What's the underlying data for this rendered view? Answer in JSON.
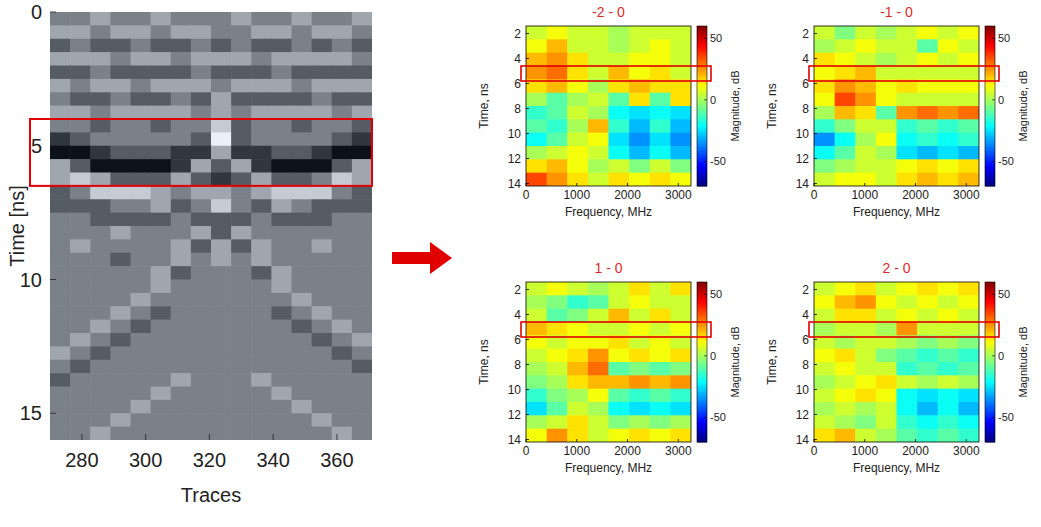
{
  "chart_data": [
    {
      "type": "heatmap",
      "x_label": "Traces",
      "y_label": "Time [ns]",
      "xlim": [
        270,
        371
      ],
      "ylim": [
        0,
        16
      ],
      "xticks": [
        280,
        300,
        320,
        340,
        360
      ],
      "yticks": [
        0,
        5,
        10,
        15
      ],
      "zlim": [
        -3,
        3
      ],
      "highlight": {
        "y": [
          4.0,
          6.5
        ],
        "color": "#e00000"
      },
      "z": [
        [
          0,
          0,
          1,
          0,
          0,
          1,
          0,
          0,
          0,
          1,
          0,
          0,
          1,
          0,
          0,
          1
        ],
        [
          1,
          1,
          0,
          1,
          1,
          0,
          1,
          1,
          0,
          0,
          1,
          1,
          0,
          1,
          1,
          0
        ],
        [
          -1,
          0,
          -1,
          -1,
          0,
          -1,
          -1,
          0,
          -1,
          0,
          -1,
          -1,
          0,
          -1,
          0,
          -1
        ],
        [
          1,
          1,
          1,
          0,
          1,
          1,
          0,
          1,
          1,
          1,
          0,
          1,
          1,
          1,
          1,
          0
        ],
        [
          -1,
          -1,
          0,
          -1,
          -1,
          -1,
          -1,
          0,
          -1,
          -1,
          -1,
          0,
          -1,
          -1,
          -1,
          -1
        ],
        [
          1,
          0,
          1,
          1,
          0,
          1,
          1,
          1,
          0,
          1,
          1,
          1,
          0,
          1,
          1,
          1
        ],
        [
          0,
          -1,
          -1,
          0,
          -1,
          -1,
          0,
          -1,
          1,
          -1,
          -1,
          -1,
          -1,
          0,
          -1,
          -1
        ],
        [
          1,
          1,
          0,
          1,
          1,
          1,
          1,
          0,
          1,
          0,
          1,
          1,
          1,
          1,
          0,
          1
        ],
        [
          0,
          0,
          -1,
          0,
          0,
          -1,
          0,
          0,
          2,
          -1,
          0,
          0,
          -1,
          0,
          0,
          -1
        ],
        [
          -2,
          -1,
          0,
          0,
          0,
          0,
          0,
          -1,
          3,
          -1,
          0,
          0,
          0,
          0,
          -1,
          -2
        ],
        [
          -3,
          -3,
          -2,
          -1,
          -1,
          -1,
          -2,
          -2,
          1,
          -2,
          -2,
          -1,
          -1,
          -2,
          -3,
          -3
        ],
        [
          1,
          -1,
          -3,
          -3,
          -3,
          -3,
          -2,
          1,
          -1,
          1,
          -2,
          -3,
          -3,
          -3,
          -1,
          1
        ],
        [
          1,
          2,
          1,
          -1,
          -1,
          -1,
          1,
          -1,
          -2,
          -1,
          1,
          -1,
          -1,
          0,
          2,
          1
        ],
        [
          -1,
          0,
          2,
          2,
          2,
          1,
          0,
          1,
          1,
          0,
          1,
          2,
          2,
          2,
          0,
          -1
        ],
        [
          -1,
          -1,
          -1,
          0,
          0,
          1,
          -1,
          0,
          2,
          0,
          -1,
          1,
          0,
          -1,
          -1,
          -1
        ],
        [
          0,
          0,
          -1,
          -1,
          -1,
          -1,
          0,
          -1,
          -1,
          -1,
          0,
          -1,
          -1,
          -1,
          0,
          0
        ],
        [
          0,
          0,
          0,
          1,
          0,
          0,
          0,
          1,
          -1,
          1,
          0,
          0,
          0,
          0,
          0,
          0
        ],
        [
          0,
          1,
          0,
          0,
          0,
          0,
          1,
          -1,
          1,
          -1,
          1,
          0,
          0,
          1,
          0,
          0
        ],
        [
          0,
          0,
          0,
          -1,
          0,
          0,
          1,
          0,
          1,
          0,
          1,
          0,
          0,
          0,
          0,
          0
        ],
        [
          0,
          0,
          0,
          0,
          0,
          1,
          -1,
          0,
          0,
          0,
          -1,
          1,
          0,
          0,
          0,
          0
        ],
        [
          0,
          0,
          0,
          0,
          0,
          1,
          0,
          0,
          0,
          0,
          0,
          1,
          0,
          0,
          0,
          0
        ],
        [
          0,
          0,
          0,
          0,
          1,
          0,
          0,
          0,
          0,
          0,
          0,
          0,
          1,
          0,
          0,
          0
        ],
        [
          0,
          0,
          0,
          1,
          0,
          -1,
          0,
          0,
          0,
          0,
          0,
          -1,
          0,
          1,
          0,
          0
        ],
        [
          0,
          0,
          1,
          0,
          -1,
          0,
          0,
          0,
          0,
          0,
          0,
          0,
          -1,
          0,
          1,
          0
        ],
        [
          0,
          1,
          0,
          -1,
          0,
          0,
          0,
          0,
          0,
          0,
          0,
          0,
          0,
          -1,
          0,
          1
        ],
        [
          1,
          0,
          -1,
          0,
          0,
          0,
          0,
          0,
          0,
          0,
          0,
          0,
          0,
          0,
          -1,
          0
        ],
        [
          0,
          -1,
          0,
          0,
          0,
          0,
          0,
          0,
          0,
          0,
          0,
          0,
          0,
          0,
          0,
          -1
        ],
        [
          -1,
          0,
          0,
          0,
          0,
          0,
          1,
          0,
          0,
          0,
          1,
          0,
          0,
          0,
          0,
          0
        ],
        [
          0,
          0,
          0,
          0,
          0,
          1,
          0,
          0,
          0,
          0,
          0,
          1,
          0,
          0,
          0,
          0
        ],
        [
          0,
          0,
          0,
          0,
          1,
          0,
          0,
          0,
          0,
          0,
          0,
          0,
          1,
          0,
          0,
          0
        ],
        [
          0,
          0,
          0,
          1,
          0,
          0,
          0,
          0,
          0,
          0,
          0,
          0,
          0,
          1,
          0,
          0
        ],
        [
          0,
          0,
          1,
          0,
          0,
          0,
          0,
          0,
          0,
          0,
          0,
          0,
          0,
          0,
          1,
          0
        ]
      ]
    },
    {
      "type": "heatmap",
      "title": "-2 - 0",
      "x_label": "Frequency, MHz",
      "y_label": "Time, ns",
      "xlim": [
        0,
        3250
      ],
      "ylim": [
        1.4,
        14.2
      ],
      "xticks": [
        0,
        1000,
        2000,
        3000
      ],
      "yticks": [
        2,
        4,
        6,
        8,
        10,
        12,
        14
      ],
      "colorbar": {
        "label": "Magnitude, dB",
        "lim": [
          -70,
          60
        ],
        "ticks": [
          50,
          0,
          -50
        ]
      },
      "highlight": {
        "y": [
          4.6,
          5.8
        ],
        "color": "#e00000"
      },
      "z": [
        [
          5,
          10,
          5,
          5,
          0,
          5,
          5,
          5
        ],
        [
          10,
          20,
          5,
          5,
          0,
          5,
          10,
          5
        ],
        [
          20,
          25,
          15,
          5,
          5,
          10,
          10,
          5
        ],
        [
          25,
          30,
          15,
          5,
          20,
          10,
          15,
          5
        ],
        [
          15,
          20,
          10,
          0,
          15,
          20,
          15,
          15
        ],
        [
          0,
          -10,
          0,
          5,
          -10,
          15,
          -10,
          15
        ],
        [
          -15,
          -10,
          5,
          0,
          -20,
          -25,
          -20,
          -25
        ],
        [
          -10,
          -15,
          0,
          20,
          -15,
          -30,
          -15,
          -30
        ],
        [
          -20,
          -10,
          5,
          10,
          -25,
          -35,
          -25,
          -35
        ],
        [
          0,
          5,
          10,
          5,
          -20,
          -30,
          -20,
          -30
        ],
        [
          15,
          20,
          10,
          0,
          5,
          -5,
          5,
          -5
        ],
        [
          35,
          25,
          15,
          5,
          15,
          10,
          15,
          10
        ]
      ]
    },
    {
      "type": "heatmap",
      "title": "-1 - 0",
      "x_label": "Frequency, MHz",
      "y_label": "Time, ns",
      "xlim": [
        0,
        3250
      ],
      "ylim": [
        1.4,
        14.2
      ],
      "xticks": [
        0,
        1000,
        2000,
        3000
      ],
      "yticks": [
        2,
        4,
        6,
        8,
        10,
        12,
        14
      ],
      "colorbar": {
        "label": "Magnitude, dB",
        "lim": [
          -70,
          60
        ],
        "ticks": [
          50,
          0,
          -50
        ]
      },
      "highlight": {
        "y": [
          4.6,
          5.8
        ],
        "color": "#e00000"
      },
      "z": [
        [
          5,
          -5,
          5,
          0,
          5,
          10,
          5,
          10
        ],
        [
          0,
          5,
          10,
          5,
          5,
          -10,
          10,
          5
        ],
        [
          15,
          10,
          5,
          0,
          5,
          10,
          5,
          10
        ],
        [
          10,
          15,
          20,
          5,
          5,
          5,
          5,
          5
        ],
        [
          15,
          25,
          20,
          10,
          15,
          10,
          10,
          10
        ],
        [
          10,
          35,
          25,
          10,
          5,
          5,
          5,
          5
        ],
        [
          0,
          20,
          15,
          -10,
          25,
          30,
          25,
          30
        ],
        [
          -15,
          -5,
          5,
          5,
          -15,
          -10,
          -15,
          -10
        ],
        [
          -35,
          -20,
          0,
          10,
          -20,
          -15,
          -20,
          -15
        ],
        [
          -20,
          -10,
          5,
          0,
          -25,
          -30,
          -25,
          -30
        ],
        [
          -5,
          0,
          5,
          5,
          10,
          15,
          10,
          15
        ],
        [
          5,
          10,
          10,
          5,
          15,
          20,
          15,
          20
        ]
      ]
    },
    {
      "type": "heatmap",
      "title": "1 - 0",
      "x_label": "Frequency, MHz",
      "y_label": "Time, ns",
      "xlim": [
        0,
        3250
      ],
      "ylim": [
        1.4,
        14.2
      ],
      "xticks": [
        0,
        1000,
        2000,
        3000
      ],
      "yticks": [
        2,
        4,
        6,
        8,
        10,
        12,
        14
      ],
      "colorbar": {
        "label": "Magnitude, dB",
        "lim": [
          -70,
          60
        ],
        "ticks": [
          50,
          0,
          -50
        ]
      },
      "highlight": {
        "y": [
          4.6,
          5.8
        ],
        "color": "#e00000"
      },
      "z": [
        [
          5,
          10,
          5,
          0,
          5,
          15,
          5,
          15
        ],
        [
          0,
          -5,
          -15,
          -10,
          5,
          10,
          5,
          5
        ],
        [
          5,
          -10,
          -5,
          5,
          20,
          5,
          15,
          5
        ],
        [
          20,
          15,
          10,
          5,
          5,
          10,
          5,
          10
        ],
        [
          10,
          5,
          10,
          10,
          15,
          5,
          10,
          5
        ],
        [
          5,
          10,
          15,
          25,
          10,
          15,
          10,
          15
        ],
        [
          0,
          5,
          20,
          30,
          -10,
          -5,
          -10,
          -5
        ],
        [
          -5,
          0,
          15,
          20,
          20,
          25,
          20,
          25
        ],
        [
          -15,
          -5,
          0,
          10,
          -10,
          -15,
          -10,
          -15
        ],
        [
          -25,
          -10,
          5,
          0,
          -20,
          -25,
          -20,
          -25
        ],
        [
          0,
          5,
          15,
          5,
          -5,
          0,
          -5,
          0
        ],
        [
          10,
          25,
          15,
          5,
          10,
          15,
          10,
          15
        ]
      ]
    },
    {
      "type": "heatmap",
      "title": "2 - 0",
      "x_label": "Frequency, MHz",
      "y_label": "Time, ns",
      "xlim": [
        0,
        3250
      ],
      "ylim": [
        1.4,
        14.2
      ],
      "xticks": [
        0,
        1000,
        2000,
        3000
      ],
      "yticks": [
        2,
        4,
        6,
        8,
        10,
        12,
        14
      ],
      "colorbar": {
        "label": "Magnitude, dB",
        "lim": [
          -70,
          60
        ],
        "ticks": [
          50,
          0,
          -50
        ]
      },
      "highlight": {
        "y": [
          4.6,
          5.8
        ],
        "color": "#e00000"
      },
      "z": [
        [
          5,
          10,
          15,
          5,
          10,
          15,
          10,
          15
        ],
        [
          10,
          20,
          25,
          10,
          5,
          10,
          5,
          10
        ],
        [
          5,
          15,
          15,
          5,
          10,
          5,
          10,
          5
        ],
        [
          0,
          5,
          5,
          0,
          25,
          5,
          5,
          5
        ],
        [
          5,
          0,
          5,
          5,
          0,
          -5,
          0,
          -5
        ],
        [
          10,
          15,
          5,
          -5,
          -10,
          -15,
          -10,
          -15
        ],
        [
          5,
          10,
          5,
          5,
          -15,
          -10,
          -15,
          -10
        ],
        [
          0,
          5,
          10,
          15,
          5,
          0,
          5,
          0
        ],
        [
          5,
          10,
          15,
          10,
          -20,
          -25,
          -20,
          -25
        ],
        [
          0,
          5,
          0,
          5,
          -20,
          -30,
          -20,
          -30
        ],
        [
          5,
          0,
          -5,
          5,
          -15,
          -20,
          -15,
          -20
        ],
        [
          15,
          20,
          5,
          0,
          -10,
          -15,
          -10,
          -15
        ]
      ]
    }
  ]
}
